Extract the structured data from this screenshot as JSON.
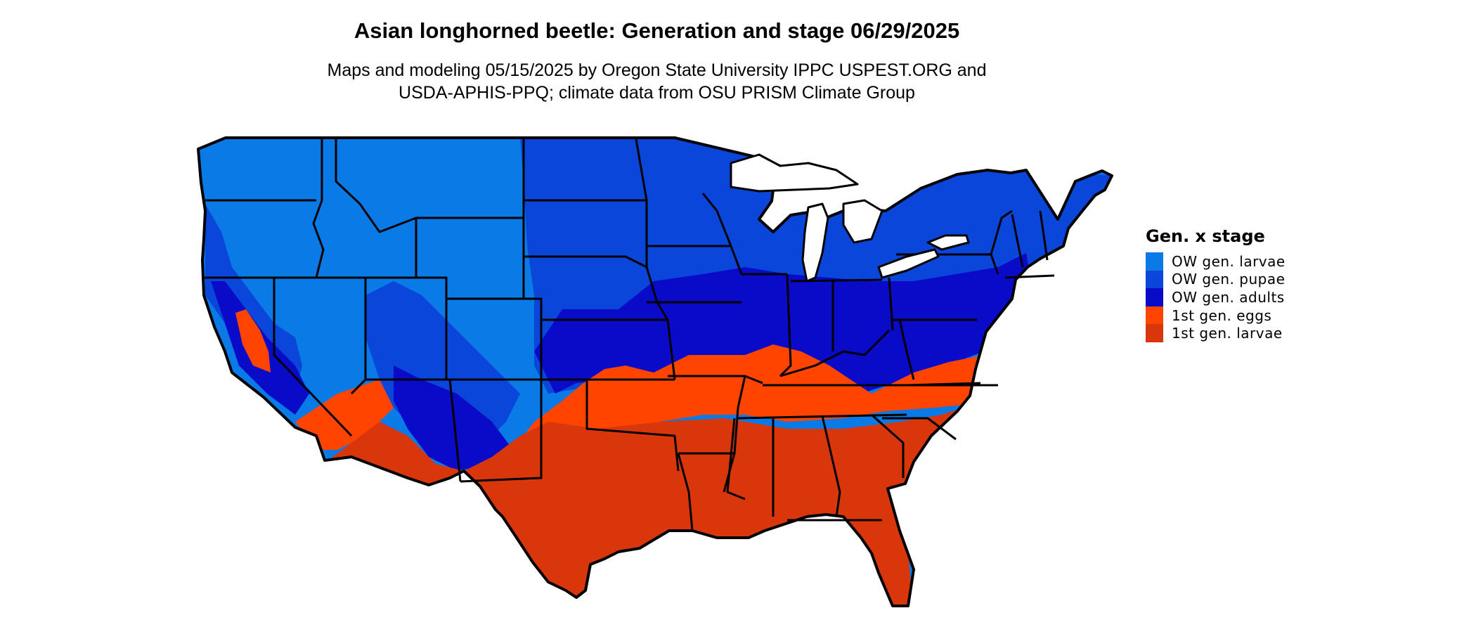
{
  "map": {
    "title": "Asian longhorned beetle: Generation and stage 06/29/2025",
    "subtitle_line1": "Maps and modeling 05/15/2025 by Oregon State University IPPC USPEST.ORG and",
    "subtitle_line2": "USDA-APHIS-PPQ; climate data from OSU PRISM Climate Group",
    "region": "Contiguous United States",
    "legend": {
      "title": "Gen. x stage",
      "items": [
        {
          "label": "OW gen. larvae",
          "color": "#0a7ae6"
        },
        {
          "label": "OW gen. pupae",
          "color": "#0a46d9"
        },
        {
          "label": "OW gen. adults",
          "color": "#0a0ac9"
        },
        {
          "label": "1st gen. eggs",
          "color": "#ff4400"
        },
        {
          "label": "1st gen. larvae",
          "color": "#d9360c"
        }
      ]
    },
    "boundary_color": "#000000"
  }
}
